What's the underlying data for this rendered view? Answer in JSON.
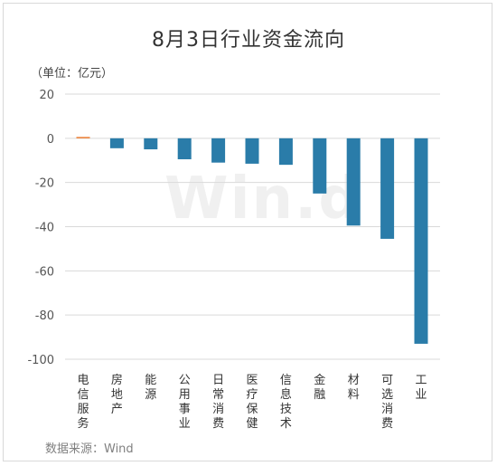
{
  "header": {
    "title": "8月3日行业资金流向"
  },
  "unit": "（单位：亿元）",
  "source": "数据来源：Wind",
  "watermark": "Win.d",
  "colors": {
    "positive": "#ED7D31",
    "negative": "#2A7CA9",
    "axis": "#d9d9d9"
  },
  "chart_data": {
    "type": "bar",
    "title": "8月3日行业资金流向",
    "ylabel": "（单位：亿元）",
    "xlabel": "",
    "ylim": [
      -100,
      20
    ],
    "yticks": [
      20,
      0,
      -20,
      -40,
      -60,
      -80,
      -100
    ],
    "grid": false,
    "categories": [
      "电信服务",
      "房地产",
      "能源",
      "公用事业",
      "日常消费",
      "医疗保健",
      "信息技术",
      "金融",
      "材料",
      "可选消费",
      "工业"
    ],
    "values": [
      0.5,
      -4.5,
      -5,
      -9.5,
      -11,
      -11.5,
      -12,
      -25,
      -39.5,
      -45.5,
      -93
    ]
  }
}
